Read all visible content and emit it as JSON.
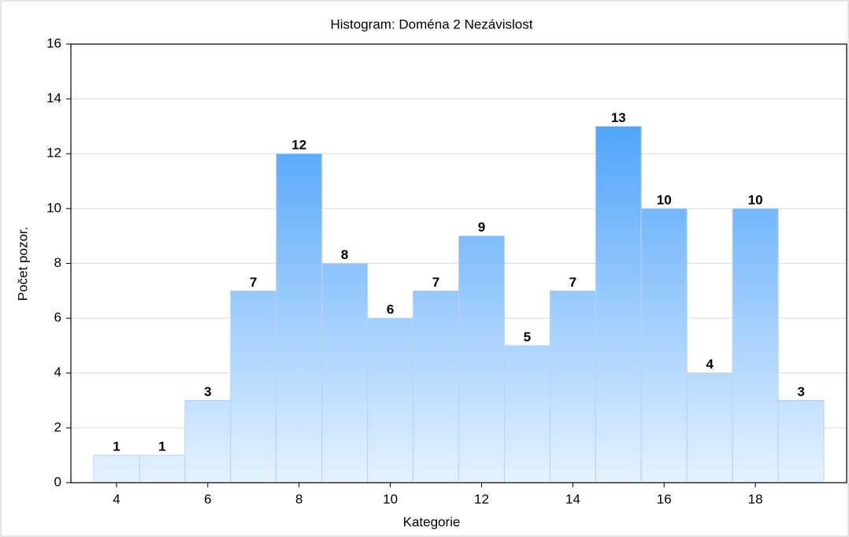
{
  "chart_data": {
    "type": "histogram",
    "title": "Histogram: Doména 2 Nezávislost",
    "x_label": "Kategorie",
    "y_label": "Počet pozor.",
    "bins": [
      3.5,
      4.5,
      5.5,
      6.5,
      7.5,
      8.5,
      9.5,
      10.5,
      11.5,
      12.5,
      13.5,
      14.5,
      15.5,
      16.5,
      17.5,
      18.5,
      19.5
    ],
    "values": [
      1,
      1,
      3,
      7,
      12,
      8,
      6,
      7,
      9,
      5,
      7,
      13,
      10,
      4,
      10,
      3
    ],
    "color": "#2e93fa",
    "xlim": [
      3,
      20
    ],
    "xticks": [
      4,
      6,
      8,
      10,
      12,
      14,
      16,
      18
    ],
    "ylim": [
      0,
      16
    ],
    "yticks": [
      0,
      2,
      4,
      6,
      8,
      10,
      12,
      14,
      16
    ],
    "grid": true
  }
}
